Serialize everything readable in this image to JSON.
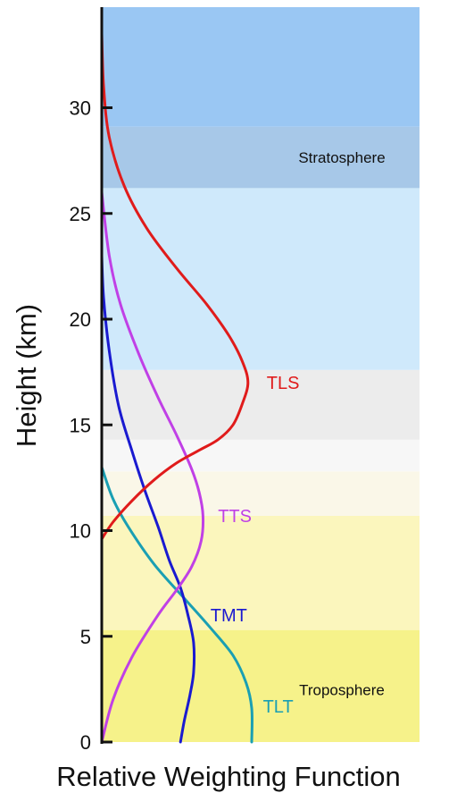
{
  "chart_data": {
    "type": "line",
    "xlabel": "Relative Weighting Function",
    "ylabel": "Height (km)",
    "ylim": [
      0,
      35
    ],
    "xlim": [
      0,
      1
    ],
    "yticks": [
      0,
      5,
      10,
      15,
      20,
      25,
      30
    ],
    "grid": false,
    "bands": [
      {
        "from": 0,
        "to": 5.3,
        "color": "#f6f28a",
        "label": "Troposphere"
      },
      {
        "from": 5.3,
        "to": 10.7,
        "color": "#fbf6bd",
        "label": ""
      },
      {
        "from": 10.7,
        "to": 12.8,
        "color": "#faf7e8",
        "label": ""
      },
      {
        "from": 12.8,
        "to": 14.3,
        "color": "#f7f7f7",
        "label": ""
      },
      {
        "from": 14.3,
        "to": 17.6,
        "color": "#ececec",
        "label": ""
      },
      {
        "from": 17.6,
        "to": 26.2,
        "color": "#cfe9fb",
        "label": ""
      },
      {
        "from": 26.2,
        "to": 29.1,
        "color": "#a7c8e8",
        "label": "Stratosphere"
      },
      {
        "from": 29.1,
        "to": 35.0,
        "color": "#9ac7f3",
        "label": ""
      }
    ],
    "series": [
      {
        "name": "TLS",
        "color": "#e01b1b",
        "points": [
          [
            0,
            9.6
          ],
          [
            0.03,
            10.4
          ],
          [
            0.08,
            11.4
          ],
          [
            0.14,
            12.4
          ],
          [
            0.2,
            13.2
          ],
          [
            0.26,
            13.8
          ],
          [
            0.31,
            14.3
          ],
          [
            0.35,
            15.0
          ],
          [
            0.375,
            16.0
          ],
          [
            0.39,
            17.0
          ],
          [
            0.375,
            18.0
          ],
          [
            0.34,
            19.2
          ],
          [
            0.28,
            20.7
          ],
          [
            0.2,
            22.4
          ],
          [
            0.12,
            24.3
          ],
          [
            0.06,
            26.3
          ],
          [
            0.02,
            28.6
          ],
          [
            0.005,
            31.0
          ],
          [
            0,
            33.5
          ]
        ]
      },
      {
        "name": "TTS",
        "color": "#c040e6",
        "points": [
          [
            0,
            0
          ],
          [
            0.03,
            2.0
          ],
          [
            0.08,
            4.0
          ],
          [
            0.15,
            6.0
          ],
          [
            0.2,
            7.2
          ],
          [
            0.24,
            8.3
          ],
          [
            0.265,
            9.5
          ],
          [
            0.27,
            10.7
          ],
          [
            0.26,
            11.8
          ],
          [
            0.24,
            12.9
          ],
          [
            0.2,
            14.5
          ],
          [
            0.15,
            16.3
          ],
          [
            0.1,
            18.3
          ],
          [
            0.05,
            20.7
          ],
          [
            0.02,
            23.0
          ],
          [
            0,
            26.0
          ]
        ]
      },
      {
        "name": "TMT",
        "color": "#1a1ad0",
        "points": [
          [
            0.21,
            0
          ],
          [
            0.22,
            1.0
          ],
          [
            0.235,
            2.2
          ],
          [
            0.245,
            3.3
          ],
          [
            0.245,
            4.7
          ],
          [
            0.23,
            6.0
          ],
          [
            0.21,
            7.3
          ],
          [
            0.18,
            8.6
          ],
          [
            0.15,
            10.2
          ],
          [
            0.115,
            11.9
          ],
          [
            0.08,
            13.8
          ],
          [
            0.045,
            15.9
          ],
          [
            0.02,
            18.5
          ],
          [
            0.005,
            21.0
          ],
          [
            0,
            23.0
          ]
        ]
      },
      {
        "name": "TLT",
        "color": "#1a9fb3",
        "points": [
          [
            0.4,
            0
          ],
          [
            0.4,
            1.6
          ],
          [
            0.385,
            2.8
          ],
          [
            0.35,
            4.1
          ],
          [
            0.29,
            5.4
          ],
          [
            0.22,
            6.8
          ],
          [
            0.14,
            8.4
          ],
          [
            0.07,
            10.2
          ],
          [
            0.03,
            11.5
          ],
          [
            0,
            13.0
          ]
        ]
      }
    ],
    "series_label_positions": {
      "TLS": [
        0.44,
        17.0
      ],
      "TTS": [
        0.31,
        10.7
      ],
      "TMT": [
        0.29,
        6.0
      ],
      "TLT": [
        0.43,
        1.7
      ]
    }
  }
}
